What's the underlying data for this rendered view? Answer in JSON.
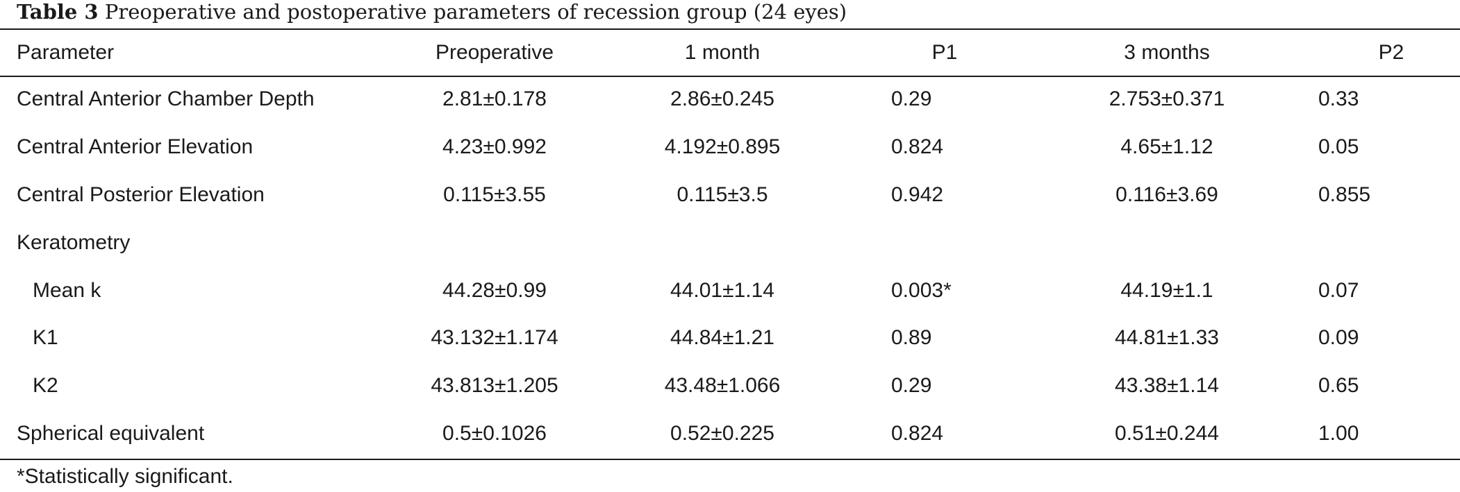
{
  "caption": {
    "label": "Table 3",
    "text": "Preoperative and postoperative parameters of recession group (24 eyes)"
  },
  "table": {
    "headers": [
      "Parameter",
      "Preoperative",
      "1 month",
      "P1",
      "3 months",
      "P2"
    ],
    "rows": [
      [
        "Central Anterior Chamber Depth",
        "2.81±0.178",
        "2.86±0.245",
        "0.29",
        "2.753±0.371",
        "0.33"
      ],
      [
        "Central Anterior Elevation",
        "4.23±0.992",
        "4.192±0.895",
        "0.824",
        "4.65±1.12",
        "0.05"
      ],
      [
        "Central Posterior Elevation",
        "0.115±3.55",
        "0.115±3.5",
        "0.942",
        "0.116±3.69",
        "0.855"
      ],
      [
        "Keratometry",
        "",
        "",
        "",
        "",
        ""
      ],
      [
        "Mean k",
        "44.28±0.99",
        "44.01±1.14",
        "0.003*",
        "44.19±1.1",
        "0.07"
      ],
      [
        "K1",
        "43.132±1.174",
        "44.84±1.21",
        "0.89",
        "44.81±1.33",
        "0.09"
      ],
      [
        "K2",
        "43.813±1.205",
        "43.48±1.066",
        "0.29",
        "43.38±1.14",
        "0.65"
      ],
      [
        "Spherical equivalent",
        "0.5±0.1026",
        "0.52±0.225",
        "0.824",
        "0.51±0.244",
        "1.00"
      ]
    ]
  },
  "footnote": "*Statistically significant."
}
